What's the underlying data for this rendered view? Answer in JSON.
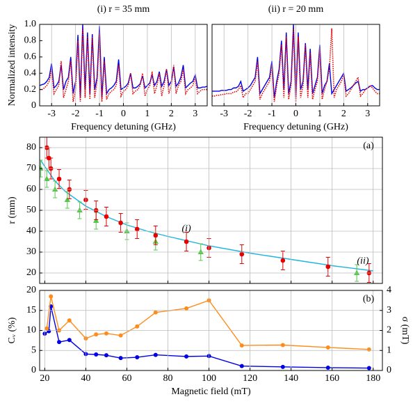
{
  "chart_data": [
    {
      "type": "line",
      "title": "(i) r = 35  mm",
      "xlabel": "Frequency detuning (GHz)",
      "ylabel": "Normalized intensity",
      "xlim": [
        -3.5,
        3.5
      ],
      "xticks": [
        -3,
        -2,
        -1,
        0,
        1,
        2,
        3
      ],
      "ylim": [
        0,
        1
      ],
      "yticks": [
        0,
        0.2,
        0.4,
        0.6,
        0.8,
        {
          "value": 1,
          "label": "1.0"
        }
      ],
      "grid": "x",
      "x": [
        -3.5,
        -3.4,
        -3.3,
        -3.2,
        -3.1,
        -3.0,
        -2.9,
        -2.8,
        -2.7,
        -2.6,
        -2.5,
        -2.4,
        -2.3,
        -2.2,
        -2.1,
        -2.0,
        -1.9,
        -1.8,
        -1.7,
        -1.6,
        -1.5,
        -1.4,
        -1.3,
        -1.2,
        -1.1,
        -1.0,
        -0.9,
        -0.8,
        -0.7,
        -0.6,
        -0.5,
        -0.4,
        -0.3,
        -0.2,
        -0.1,
        0,
        0.1,
        0.2,
        0.3,
        0.4,
        0.5,
        0.6,
        0.7,
        0.8,
        0.9,
        1.0,
        1.1,
        1.2,
        1.3,
        1.4,
        1.5,
        1.6,
        1.7,
        1.8,
        1.9,
        2.0,
        2.1,
        2.2,
        2.3,
        2.4,
        2.5,
        2.6,
        2.7,
        2.8,
        2.9,
        3.0,
        3.1,
        3.2,
        3.3,
        3.4,
        3.5
      ],
      "series": [
        {
          "color": "#0000e6",
          "style": "solid",
          "values": [
            0.25,
            0.26,
            0.27,
            0.3,
            0.35,
            0.52,
            0.22,
            0.25,
            0.3,
            0.5,
            0.2,
            0.3,
            0.35,
            0.6,
            0.15,
            0.3,
            0.87,
            0.1,
            1.0,
            0.2,
            0.9,
            0.15,
            0.88,
            0.2,
            0.35,
            0.98,
            0.1,
            0.6,
            0.15,
            0.2,
            0.22,
            0.25,
            0.3,
            0.57,
            0.2,
            0.22,
            0.24,
            0.28,
            0.4,
            0.22,
            0.22,
            0.24,
            0.27,
            0.37,
            0.22,
            0.25,
            0.28,
            0.38,
            0.25,
            0.3,
            0.42,
            0.24,
            0.3,
            0.45,
            0.25,
            0.3,
            0.48,
            0.24,
            0.28,
            0.35,
            0.5,
            0.22,
            0.25,
            0.28,
            0.3,
            0.38,
            0.22,
            0.22,
            0.23,
            0.23,
            0.24
          ]
        },
        {
          "color": "#e60000",
          "style": "dotted",
          "values": [
            0.2,
            0.2,
            0.22,
            0.25,
            0.3,
            0.45,
            0.15,
            0.2,
            0.25,
            0.55,
            0.1,
            0.2,
            0.3,
            0.55,
            0.05,
            0.2,
            0.8,
            0.05,
            0.95,
            0.1,
            0.85,
            0.08,
            0.85,
            0.1,
            0.3,
            0.9,
            0.05,
            0.55,
            0.08,
            0.15,
            0.18,
            0.2,
            0.25,
            0.5,
            0.12,
            0.18,
            0.2,
            0.25,
            0.4,
            0.15,
            0.18,
            0.2,
            0.25,
            0.4,
            0.12,
            0.2,
            0.25,
            0.42,
            0.15,
            0.25,
            0.4,
            0.12,
            0.25,
            0.45,
            0.15,
            0.25,
            0.5,
            0.15,
            0.25,
            0.3,
            0.45,
            0.15,
            0.2,
            0.22,
            0.25,
            0.35,
            0.15,
            0.18,
            0.2,
            0.2,
            0.2
          ]
        }
      ]
    },
    {
      "type": "line",
      "title": "(ii) r = 20  mm",
      "xlabel": "Frequency detuning (GHz)",
      "xlim": [
        -3.5,
        3.5
      ],
      "xticks": [
        -3,
        -2,
        -1,
        0,
        1,
        2,
        3
      ],
      "ylim": [
        0,
        1
      ],
      "grid": "x",
      "x": [
        -3.5,
        -3.4,
        -3.3,
        -3.2,
        -3.1,
        -3.0,
        -2.9,
        -2.8,
        -2.7,
        -2.6,
        -2.5,
        -2.4,
        -2.3,
        -2.2,
        -2.1,
        -2.0,
        -1.9,
        -1.8,
        -1.7,
        -1.6,
        -1.5,
        -1.4,
        -1.3,
        -1.2,
        -1.1,
        -1.0,
        -0.9,
        -0.8,
        -0.7,
        -0.6,
        -0.5,
        -0.4,
        -0.3,
        -0.2,
        -0.1,
        0,
        0.1,
        0.2,
        0.3,
        0.4,
        0.5,
        0.6,
        0.7,
        0.8,
        0.9,
        1.0,
        1.1,
        1.2,
        1.3,
        1.4,
        1.5,
        1.6,
        1.7,
        1.8,
        1.9,
        2.0,
        2.1,
        2.2,
        2.3,
        2.4,
        2.5,
        2.6,
        2.7,
        2.8,
        2.9,
        3.0,
        3.1,
        3.2,
        3.3,
        3.4,
        3.5
      ],
      "series": [
        {
          "color": "#0000e6",
          "style": "solid",
          "values": [
            0.18,
            0.18,
            0.18,
            0.18,
            0.19,
            0.19,
            0.19,
            0.2,
            0.2,
            0.22,
            0.22,
            0.24,
            0.3,
            0.18,
            0.2,
            0.22,
            0.25,
            0.3,
            0.35,
            0.6,
            0.15,
            0.2,
            0.25,
            0.3,
            0.35,
            0.55,
            0.1,
            0.3,
            0.45,
            0.8,
            0.2,
            0.9,
            0.15,
            0.3,
            1.0,
            0.1,
            0.9,
            0.2,
            0.3,
            0.77,
            0.2,
            0.7,
            0.15,
            0.25,
            0.35,
            0.75,
            0.15,
            0.25,
            0.3,
            0.52,
            0.15,
            0.2,
            0.25,
            0.3,
            0.35,
            0.4,
            0.18,
            0.2,
            0.22,
            0.25,
            0.28,
            0.3,
            0.18,
            0.2,
            0.2,
            0.22,
            0.24,
            0.25,
            0.22,
            0.2,
            0.2
          ]
        },
        {
          "color": "#e60000",
          "style": "dotted",
          "values": [
            0.12,
            0.12,
            0.13,
            0.13,
            0.14,
            0.14,
            0.15,
            0.15,
            0.15,
            0.17,
            0.17,
            0.2,
            0.25,
            0.1,
            0.15,
            0.15,
            0.2,
            0.25,
            0.3,
            0.55,
            0.08,
            0.15,
            0.2,
            0.25,
            0.3,
            0.5,
            0.05,
            0.25,
            0.4,
            0.75,
            0.1,
            0.85,
            0.08,
            0.25,
            0.95,
            0.05,
            0.85,
            0.1,
            0.25,
            0.75,
            0.1,
            0.65,
            0.08,
            0.2,
            0.3,
            0.7,
            0.08,
            0.2,
            0.3,
            0.45,
            0.95,
            0.1,
            0.2,
            0.25,
            0.3,
            0.38,
            0.12,
            0.15,
            0.2,
            0.25,
            0.3,
            0.35,
            0.12,
            0.15,
            0.2,
            0.22,
            0.25,
            0.22,
            0.18,
            0.15,
            0.15
          ]
        }
      ]
    },
    {
      "type": "scatter",
      "ylabel": "r (mm)",
      "panel_label": "(a)",
      "annotations": [
        "(i)",
        "(ii)"
      ],
      "xlim": [
        17.5,
        184.5
      ],
      "xticks": [
        20,
        40,
        60,
        80,
        100,
        120,
        140,
        160,
        180
      ],
      "xtick_labels": false,
      "ylim": [
        15,
        85
      ],
      "yticks": [
        20,
        30,
        40,
        50,
        60,
        70,
        80
      ],
      "grid": "both",
      "series": [
        {
          "color": "#1cb4e0",
          "marker": "none",
          "x": [
            18,
            20,
            25,
            30,
            40,
            50,
            60,
            70,
            80,
            100,
            120,
            140,
            160,
            180
          ],
          "values": [
            74,
            71,
            64,
            59,
            52,
            47,
            43,
            40,
            37.5,
            33,
            29.5,
            26.5,
            23.5,
            21
          ]
        },
        {
          "color": "#55c84a",
          "marker": "triangle",
          "x": [
            18,
            21,
            25,
            31,
            37,
            45,
            60,
            74,
            96,
            172
          ],
          "values": [
            70,
            65,
            60,
            55,
            50,
            45,
            40,
            35,
            30,
            20
          ],
          "errors": [
            4,
            4,
            4,
            4,
            4,
            4,
            4,
            4,
            4,
            4
          ]
        },
        {
          "color": "#e60000",
          "marker": "circle",
          "x": [
            21,
            22,
            23,
            27,
            32,
            40,
            45,
            50,
            57,
            65,
            74,
            89,
            100,
            116,
            136,
            158,
            178
          ],
          "values": [
            80,
            75,
            70,
            65,
            60,
            55,
            50,
            47,
            44,
            41,
            38,
            35,
            32,
            29,
            26,
            23,
            20
          ],
          "errors": [
            5,
            5,
            5,
            4.5,
            4.5,
            4.5,
            4.5,
            4.5,
            4.5,
            4.5,
            4.5,
            4.5,
            4.5,
            4.5,
            4.5,
            4.5,
            4.5
          ]
        }
      ]
    },
    {
      "type": "line",
      "xlabel": "Magnetic field (mT)",
      "ylabel": "Cᵥ (%)",
      "y2label": "σ (mT)",
      "panel_label": "(b)",
      "xlim": [
        17.5,
        184.5
      ],
      "xticks": [
        20,
        40,
        60,
        80,
        100,
        120,
        140,
        160,
        180
      ],
      "ylim": [
        0,
        20
      ],
      "yticks": [
        0,
        5,
        10,
        15,
        20
      ],
      "y2lim": [
        0,
        4
      ],
      "y2ticks": [
        0,
        1,
        2,
        3,
        4
      ],
      "grid": "both",
      "ycolor": "#0000e6",
      "y2color": "#ff8c1a",
      "series": [
        {
          "color": "#0000e6",
          "marker": "circle",
          "x": [
            20,
            22,
            23,
            27,
            32,
            40,
            45,
            50,
            57,
            65,
            74,
            89,
            100,
            116,
            136,
            158,
            178
          ],
          "values": [
            9.2,
            9.8,
            16,
            7.1,
            7.6,
            4.1,
            4.0,
            3.8,
            3.1,
            3.3,
            3.9,
            3.5,
            3.6,
            1.1,
            0.9,
            0.7,
            0.6
          ]
        },
        {
          "color": "#ff8c1a",
          "marker": "circle",
          "axis": "y2",
          "x": [
            21,
            23,
            27,
            32,
            40,
            45,
            50,
            57,
            65,
            74,
            89,
            100,
            116,
            136,
            158,
            178
          ],
          "values": [
            2.1,
            3.7,
            2.0,
            2.5,
            1.6,
            1.8,
            1.85,
            1.75,
            2.2,
            2.9,
            3.1,
            3.5,
            1.25,
            1.27,
            1.15,
            1.05
          ]
        }
      ]
    }
  ]
}
